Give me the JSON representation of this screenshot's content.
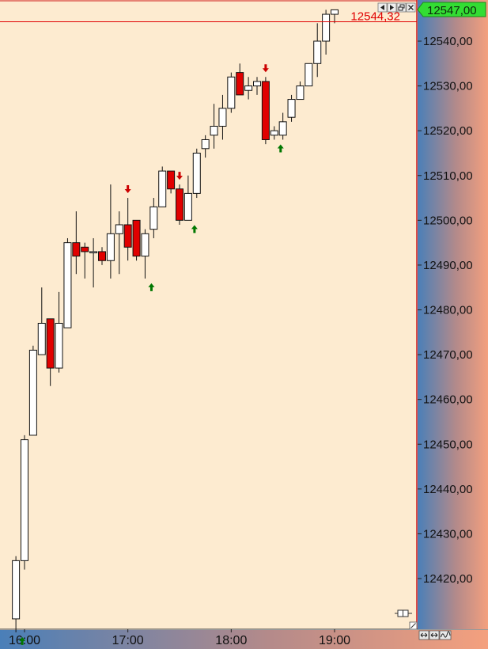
{
  "chart": {
    "last_price_label": "12544,32",
    "current_price_label": "12547,00",
    "y_tick_labels": [
      "12540,00",
      "12530,00",
      "12520,00",
      "12510,00",
      "12500,00",
      "12490,00",
      "12480,00",
      "12470,00",
      "12460,00",
      "12450,00",
      "12440,00",
      "12430,00",
      "12420,00"
    ],
    "x_tick_labels": [
      "16:00",
      "17:00",
      "18:00",
      "19:00"
    ]
  },
  "colors": {
    "plot_background": "#fdebd0",
    "bull_candle": "#ffffff",
    "bear_candle": "#e00000",
    "price_line": "#e00000",
    "current_price_badge": "#33dd33",
    "up_arrow": "#007700",
    "down_arrow": "#cc0000"
  },
  "icons": {
    "window_controls": [
      "arrow-left-icon",
      "arrow-right-icon",
      "restore-icon",
      "close-icon"
    ],
    "axis_controls": [
      "expand-horizontal-icon",
      "scroll-horizontal-icon",
      "wave-icon"
    ]
  },
  "chart_data": {
    "type": "candlestick",
    "title": "",
    "y_ticks": [
      12540,
      12530,
      12520,
      12510,
      12500,
      12490,
      12480,
      12470,
      12460,
      12450,
      12440,
      12430,
      12420
    ],
    "x_ticks": [
      "16:00",
      "17:00",
      "18:00",
      "19:00"
    ],
    "ylim": [
      12413,
      12548
    ],
    "last_price": 12544.32,
    "current_price": 12547.0,
    "grid": false,
    "candles": [
      {
        "time": "15:55",
        "open": 12411,
        "high": 12425,
        "low": 12408,
        "close": 12424
      },
      {
        "time": "16:00",
        "open": 12424,
        "high": 12452,
        "low": 12422,
        "close": 12451
      },
      {
        "time": "16:05",
        "open": 12452,
        "high": 12472,
        "low": 12452,
        "close": 12471
      },
      {
        "time": "16:10",
        "open": 12470,
        "high": 12485,
        "low": 12470,
        "close": 12477
      },
      {
        "time": "16:15",
        "open": 12478,
        "high": 12478,
        "low": 12463,
        "close": 12467
      },
      {
        "time": "16:20",
        "open": 12467,
        "high": 12484,
        "low": 12466,
        "close": 12477
      },
      {
        "time": "16:25",
        "open": 12476,
        "high": 12496,
        "low": 12476,
        "close": 12495
      },
      {
        "time": "16:30",
        "open": 12495,
        "high": 12502,
        "low": 12488,
        "close": 12492
      },
      {
        "time": "16:35",
        "open": 12494,
        "high": 12495,
        "low": 12487,
        "close": 12493
      },
      {
        "time": "16:40",
        "open": 12493,
        "high": 12496,
        "low": 12485,
        "close": 12493
      },
      {
        "time": "16:45",
        "open": 12493,
        "high": 12494,
        "low": 12490,
        "close": 12491
      },
      {
        "time": "16:50",
        "open": 12491,
        "high": 12508,
        "low": 12487,
        "close": 12497
      },
      {
        "time": "16:55",
        "open": 12497,
        "high": 12502,
        "low": 12488,
        "close": 12499
      },
      {
        "time": "17:00",
        "open": 12499,
        "high": 12505,
        "low": 12491,
        "close": 12494
      },
      {
        "time": "17:05",
        "open": 12500,
        "high": 12500,
        "low": 12491,
        "close": 12492
      },
      {
        "time": "17:10",
        "open": 12492,
        "high": 12498,
        "low": 12487,
        "close": 12497
      },
      {
        "time": "17:15",
        "open": 12498,
        "high": 12505,
        "low": 12496,
        "close": 12503
      },
      {
        "time": "17:20",
        "open": 12503,
        "high": 12512,
        "low": 12503,
        "close": 12511
      },
      {
        "time": "17:25",
        "open": 12511,
        "high": 12511,
        "low": 12506,
        "close": 12507
      },
      {
        "time": "17:30",
        "open": 12507,
        "high": 12508,
        "low": 12499,
        "close": 12500
      },
      {
        "time": "17:35",
        "open": 12500,
        "high": 12510,
        "low": 12500,
        "close": 12506
      },
      {
        "time": "17:40",
        "open": 12506,
        "high": 12516,
        "low": 12505,
        "close": 12515
      },
      {
        "time": "17:45",
        "open": 12516,
        "high": 12519,
        "low": 12514,
        "close": 12518
      },
      {
        "time": "17:50",
        "open": 12519,
        "high": 12526,
        "low": 12516,
        "close": 12521
      },
      {
        "time": "17:55",
        "open": 12521,
        "high": 12528,
        "low": 12518,
        "close": 12525
      },
      {
        "time": "18:00",
        "open": 12525,
        "high": 12533,
        "low": 12524,
        "close": 12532
      },
      {
        "time": "18:05",
        "open": 12533,
        "high": 12535,
        "low": 12528,
        "close": 12528
      },
      {
        "time": "18:10",
        "open": 12529,
        "high": 12532,
        "low": 12527,
        "close": 12530
      },
      {
        "time": "18:15",
        "open": 12530,
        "high": 12532,
        "low": 12528,
        "close": 12531
      },
      {
        "time": "18:20",
        "open": 12531,
        "high": 12532,
        "low": 12517,
        "close": 12518
      },
      {
        "time": "18:25",
        "open": 12519,
        "high": 12521,
        "low": 12518,
        "close": 12520
      },
      {
        "time": "18:30",
        "open": 12519,
        "high": 12524,
        "low": 12518,
        "close": 12522
      },
      {
        "time": "18:35",
        "open": 12523,
        "high": 12528,
        "low": 12522,
        "close": 12527
      },
      {
        "time": "18:40",
        "open": 12527,
        "high": 12531,
        "low": 12527,
        "close": 12530
      },
      {
        "time": "18:45",
        "open": 12530,
        "high": 12535,
        "low": 12530,
        "close": 12535
      },
      {
        "time": "18:50",
        "open": 12535,
        "high": 12544,
        "low": 12532,
        "close": 12540
      },
      {
        "time": "18:55",
        "open": 12540,
        "high": 12547,
        "low": 12537,
        "close": 12546
      },
      {
        "time": "19:00",
        "open": 12546,
        "high": 12547,
        "low": 12544,
        "close": 12547
      }
    ],
    "signals": [
      {
        "candle": 0,
        "dir": "up"
      },
      {
        "candle": 13,
        "dir": "down"
      },
      {
        "candle": 15,
        "dir": "up"
      },
      {
        "candle": 19,
        "dir": "down"
      },
      {
        "candle": 20,
        "dir": "up"
      },
      {
        "candle": 29,
        "dir": "down"
      },
      {
        "candle": 30,
        "dir": "up"
      }
    ]
  }
}
